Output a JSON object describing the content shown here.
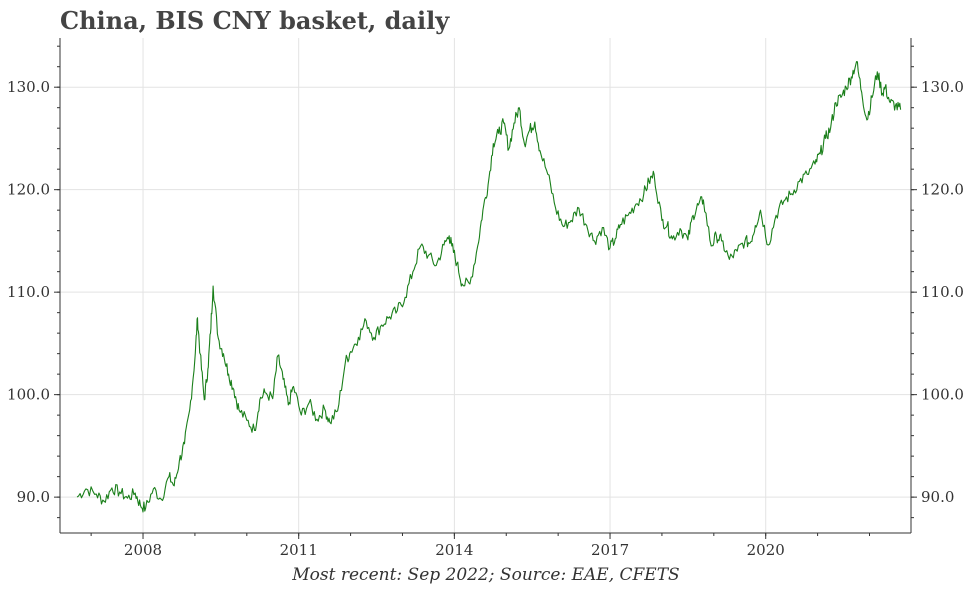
{
  "chart_data": {
    "type": "line",
    "title": "China, BIS CNY basket, daily",
    "footer": "Most recent: Sep 2022; Source: EAE, CFETS",
    "xlabel": "",
    "ylabel": "",
    "xlim": [
      2006.4,
      2022.8
    ],
    "ylim": [
      86.5,
      134.8
    ],
    "x_ticks": [
      2008,
      2011,
      2014,
      2017,
      2020
    ],
    "x_tick_labels": [
      "2008",
      "2011",
      "2014",
      "2017",
      "2020"
    ],
    "y_ticks": [
      90,
      100,
      110,
      120,
      130
    ],
    "y_tick_labels": [
      "90.0",
      "100.0",
      "110.0",
      "120.0",
      "130.0"
    ],
    "grid": true,
    "y_axis_both_sides": true,
    "series": [
      {
        "color": "#1a7f1a",
        "x": [
          2006.73,
          2006.9,
          2007.1,
          2007.25,
          2007.4,
          2007.55,
          2007.7,
          2007.85,
          2007.95,
          2008.05,
          2008.2,
          2008.35,
          2008.5,
          2008.6,
          2008.7,
          2008.8,
          2008.9,
          2009.0,
          2009.05,
          2009.1,
          2009.18,
          2009.25,
          2009.3,
          2009.35,
          2009.45,
          2009.55,
          2009.65,
          2009.75,
          2009.85,
          2010.0,
          2010.15,
          2010.25,
          2010.35,
          2010.5,
          2010.6,
          2010.7,
          2010.8,
          2010.9,
          2011.05,
          2011.2,
          2011.35,
          2011.5,
          2011.6,
          2011.75,
          2011.9,
          2012.0,
          2012.15,
          2012.3,
          2012.45,
          2012.6,
          2012.75,
          2012.9,
          2013.05,
          2013.2,
          2013.35,
          2013.5,
          2013.65,
          2013.8,
          2013.9,
          2013.95,
          2014.05,
          2014.15,
          2014.3,
          2014.45,
          2014.55,
          2014.65,
          2014.75,
          2014.85,
          2014.95,
          2015.05,
          2015.15,
          2015.25,
          2015.35,
          2015.45,
          2015.55,
          2015.65,
          2015.8,
          2015.95,
          2016.1,
          2016.25,
          2016.4,
          2016.55,
          2016.7,
          2016.85,
          2017.0,
          2017.1,
          2017.2,
          2017.35,
          2017.5,
          2017.65,
          2017.75,
          2017.85,
          2018.0,
          2018.1,
          2018.2,
          2018.35,
          2018.5,
          2018.6,
          2018.7,
          2018.8,
          2018.95,
          2019.05,
          2019.15,
          2019.3,
          2019.45,
          2019.6,
          2019.7,
          2019.8,
          2019.9,
          2020.05,
          2020.2,
          2020.35,
          2020.5,
          2020.65,
          2020.8,
          2020.95,
          2021.05,
          2021.15,
          2021.25,
          2021.35,
          2021.45,
          2021.55,
          2021.65,
          2021.75,
          2021.85,
          2021.95,
          2022.05,
          2022.15,
          2022.25,
          2022.3,
          2022.4,
          2022.5,
          2022.6
        ],
        "values": [
          90.0,
          90.8,
          90.3,
          89.6,
          90.9,
          90.5,
          89.9,
          90.4,
          89.2,
          88.9,
          90.8,
          89.8,
          92.0,
          91.1,
          93.5,
          95.2,
          98.5,
          103.5,
          107.5,
          104.0,
          99.5,
          102.5,
          106.0,
          110.6,
          105.5,
          104.0,
          102.0,
          100.5,
          98.5,
          97.5,
          96.5,
          99.5,
          100.2,
          99.6,
          103.8,
          101.5,
          99.0,
          100.8,
          98.0,
          99.2,
          97.6,
          98.6,
          97.3,
          98.4,
          103.2,
          104.2,
          105.6,
          107.2,
          105.6,
          106.8,
          107.6,
          108.2,
          109.5,
          112.0,
          114.5,
          113.6,
          112.6,
          114.6,
          115.5,
          114.5,
          112.8,
          110.8,
          110.8,
          114.5,
          118.0,
          120.5,
          124.5,
          125.5,
          126.5,
          124.0,
          126.5,
          128.0,
          124.5,
          125.8,
          126.6,
          123.8,
          121.5,
          118.2,
          116.4,
          117.0,
          118.2,
          116.5,
          115.0,
          116.3,
          114.3,
          115.2,
          116.6,
          117.5,
          118.6,
          119.6,
          120.8,
          121.5,
          117.0,
          116.5,
          115.2,
          116.2,
          115.1,
          117.5,
          118.5,
          119.0,
          114.5,
          115.5,
          115.0,
          113.2,
          114.0,
          115.0,
          114.8,
          116.5,
          118.0,
          114.6,
          117.5,
          118.9,
          119.6,
          120.8,
          121.5,
          122.5,
          123.5,
          125.0,
          126.0,
          128.5,
          129.0,
          130.0,
          131.0,
          132.5,
          129.5,
          126.8,
          129.0,
          131.5,
          129.4,
          130.0,
          128.5,
          128.2,
          127.8
        ]
      }
    ]
  }
}
